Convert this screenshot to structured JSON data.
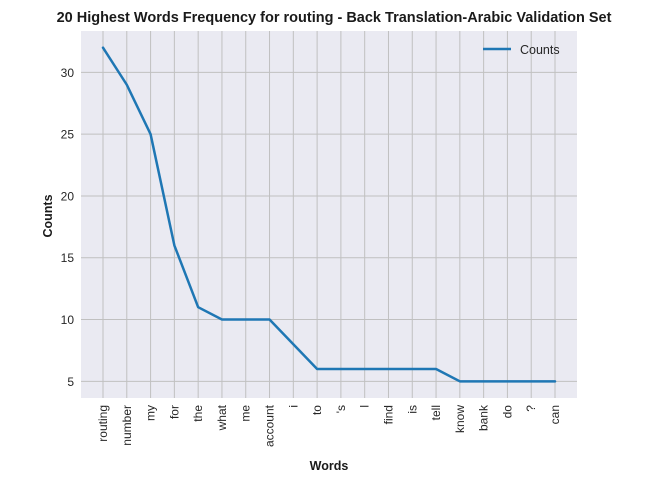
{
  "chart_data": {
    "type": "line",
    "title": "20 Highest Words Frequency for routing - Back Translation-Arabic Validation Set",
    "xlabel": "Words",
    "ylabel": "Counts",
    "categories": [
      "routing",
      "number",
      "my",
      "for",
      "the",
      "what",
      "me",
      "account",
      "i",
      "to",
      "'s",
      "l",
      "find",
      "is",
      "tell",
      "know",
      "bank",
      "do",
      "?",
      "can"
    ],
    "series": [
      {
        "name": "Counts",
        "values": [
          32,
          29,
          25,
          16,
          11,
          10,
          10,
          10,
          8,
          6,
          6,
          6,
          6,
          6,
          6,
          5,
          5,
          5,
          5,
          5
        ],
        "color": "#1f77b4"
      }
    ],
    "ylim": [
      3.65,
      33.35
    ],
    "yticks": [
      5,
      10,
      15,
      20,
      25,
      30
    ],
    "grid": true,
    "legend": "top-right",
    "colors": {
      "plot_background": "#eaeaf2",
      "grid": "#c0c0c0",
      "line": "#1f77b4"
    }
  }
}
